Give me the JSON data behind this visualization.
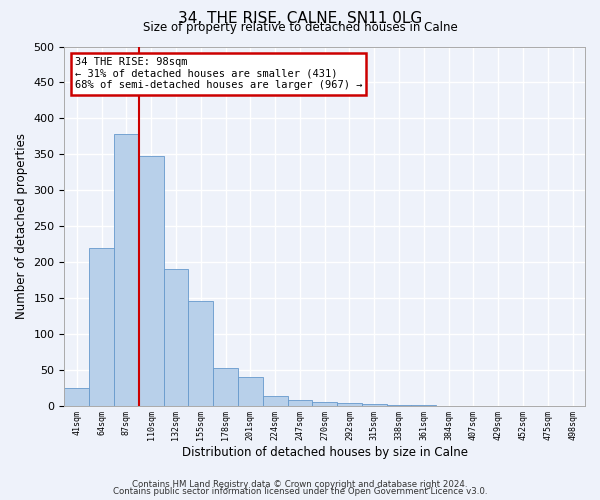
{
  "title": "34, THE RISE, CALNE, SN11 0LG",
  "subtitle": "Size of property relative to detached houses in Calne",
  "xlabel": "Distribution of detached houses by size in Calne",
  "ylabel": "Number of detached properties",
  "bar_labels": [
    "41sqm",
    "64sqm",
    "87sqm",
    "110sqm",
    "132sqm",
    "155sqm",
    "178sqm",
    "201sqm",
    "224sqm",
    "247sqm",
    "270sqm",
    "292sqm",
    "315sqm",
    "338sqm",
    "361sqm",
    "384sqm",
    "407sqm",
    "429sqm",
    "452sqm",
    "475sqm",
    "498sqm"
  ],
  "bar_values": [
    25,
    220,
    378,
    348,
    190,
    145,
    53,
    40,
    13,
    8,
    5,
    3,
    2,
    1,
    1,
    0,
    0,
    0,
    0,
    0,
    0
  ],
  "bar_color": "#b8d0ea",
  "bar_edge_color": "#6699cc",
  "vline_color": "#cc0000",
  "annotation_title": "34 THE RISE: 98sqm",
  "annotation_line1": "← 31% of detached houses are smaller (431)",
  "annotation_line2": "68% of semi-detached houses are larger (967) →",
  "annotation_box_color": "#cc0000",
  "ylim": [
    0,
    500
  ],
  "yticks": [
    0,
    50,
    100,
    150,
    200,
    250,
    300,
    350,
    400,
    450,
    500
  ],
  "background_color": "#eef2fa",
  "grid_color": "#ffffff",
  "footer_line1": "Contains HM Land Registry data © Crown copyright and database right 2024.",
  "footer_line2": "Contains public sector information licensed under the Open Government Licence v3.0."
}
